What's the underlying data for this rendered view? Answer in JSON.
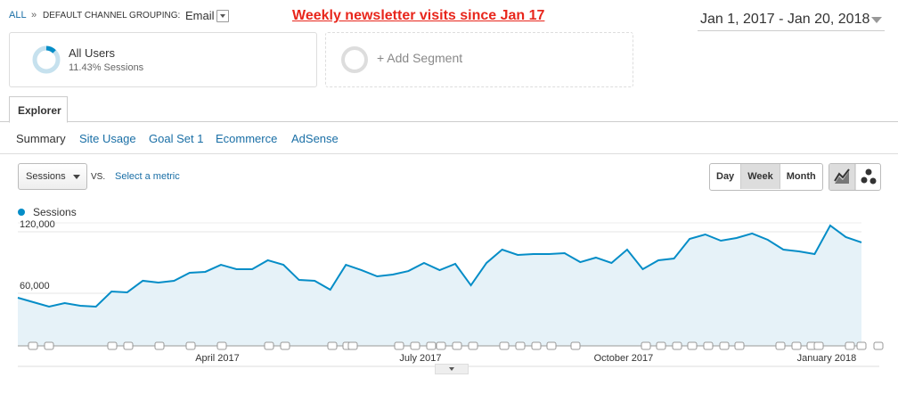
{
  "breadcrumb": {
    "all": "ALL",
    "separator": "»",
    "grouping": "DEFAULT CHANNEL GROUPING:",
    "value": "Email"
  },
  "annotation": "Weekly newsletter visits since Jan 17",
  "date_range": "Jan 1, 2017 - Jan 20, 2018",
  "segments": [
    {
      "name": "All Users",
      "detail": "11.43% Sessions"
    },
    {
      "name": "+ Add Segment"
    }
  ],
  "tabs": [
    "Explorer"
  ],
  "subtabs": [
    "Summary",
    "Site Usage",
    "Goal Set 1",
    "Ecommerce",
    "AdSense"
  ],
  "metric": {
    "select": "Sessions",
    "vs": "VS.",
    "link": "Select a metric"
  },
  "periods": [
    "Day",
    "Week",
    "Month"
  ],
  "chart_data": {
    "type": "line",
    "categories": [
      null,
      null,
      null,
      null,
      null,
      null,
      null,
      null,
      null,
      null,
      null,
      null,
      null,
      "April 2017",
      null,
      null,
      null,
      null,
      null,
      null,
      null,
      null,
      null,
      null,
      null,
      null,
      "July 2017",
      null,
      null,
      null,
      null,
      null,
      null,
      null,
      null,
      null,
      null,
      null,
      null,
      "October 2017",
      null,
      null,
      null,
      null,
      null,
      null,
      null,
      null,
      null,
      null,
      null,
      null,
      "January 2018",
      null,
      null
    ],
    "series": [
      {
        "name": "Sessions",
        "color": "#058dc7",
        "values": [
          55650,
          51300,
          47000,
          50400,
          47800,
          47000,
          61700,
          60900,
          72200,
          70400,
          72200,
          80000,
          80900,
          87800,
          83500,
          83500,
          92200,
          87800,
          73000,
          72200,
          63500,
          87800,
          82600,
          76500,
          78300,
          81700,
          89600,
          82600,
          88700,
          67800,
          89600,
          102600,
          97400,
          98300,
          98300,
          99100,
          90400,
          94800,
          89600,
          102600,
          83500,
          92200,
          93900,
          113000,
          117400,
          111300,
          113900,
          118300,
          112200,
          102600,
          100900,
          98300,
          126100,
          114800,
          109600
        ]
      }
    ],
    "ylim": [
      8700,
      128700
    ],
    "yticks": [
      {
        "value": 60000,
        "label": "60,000"
      },
      {
        "value": 120000,
        "label": "120,000"
      }
    ],
    "grid": true
  }
}
